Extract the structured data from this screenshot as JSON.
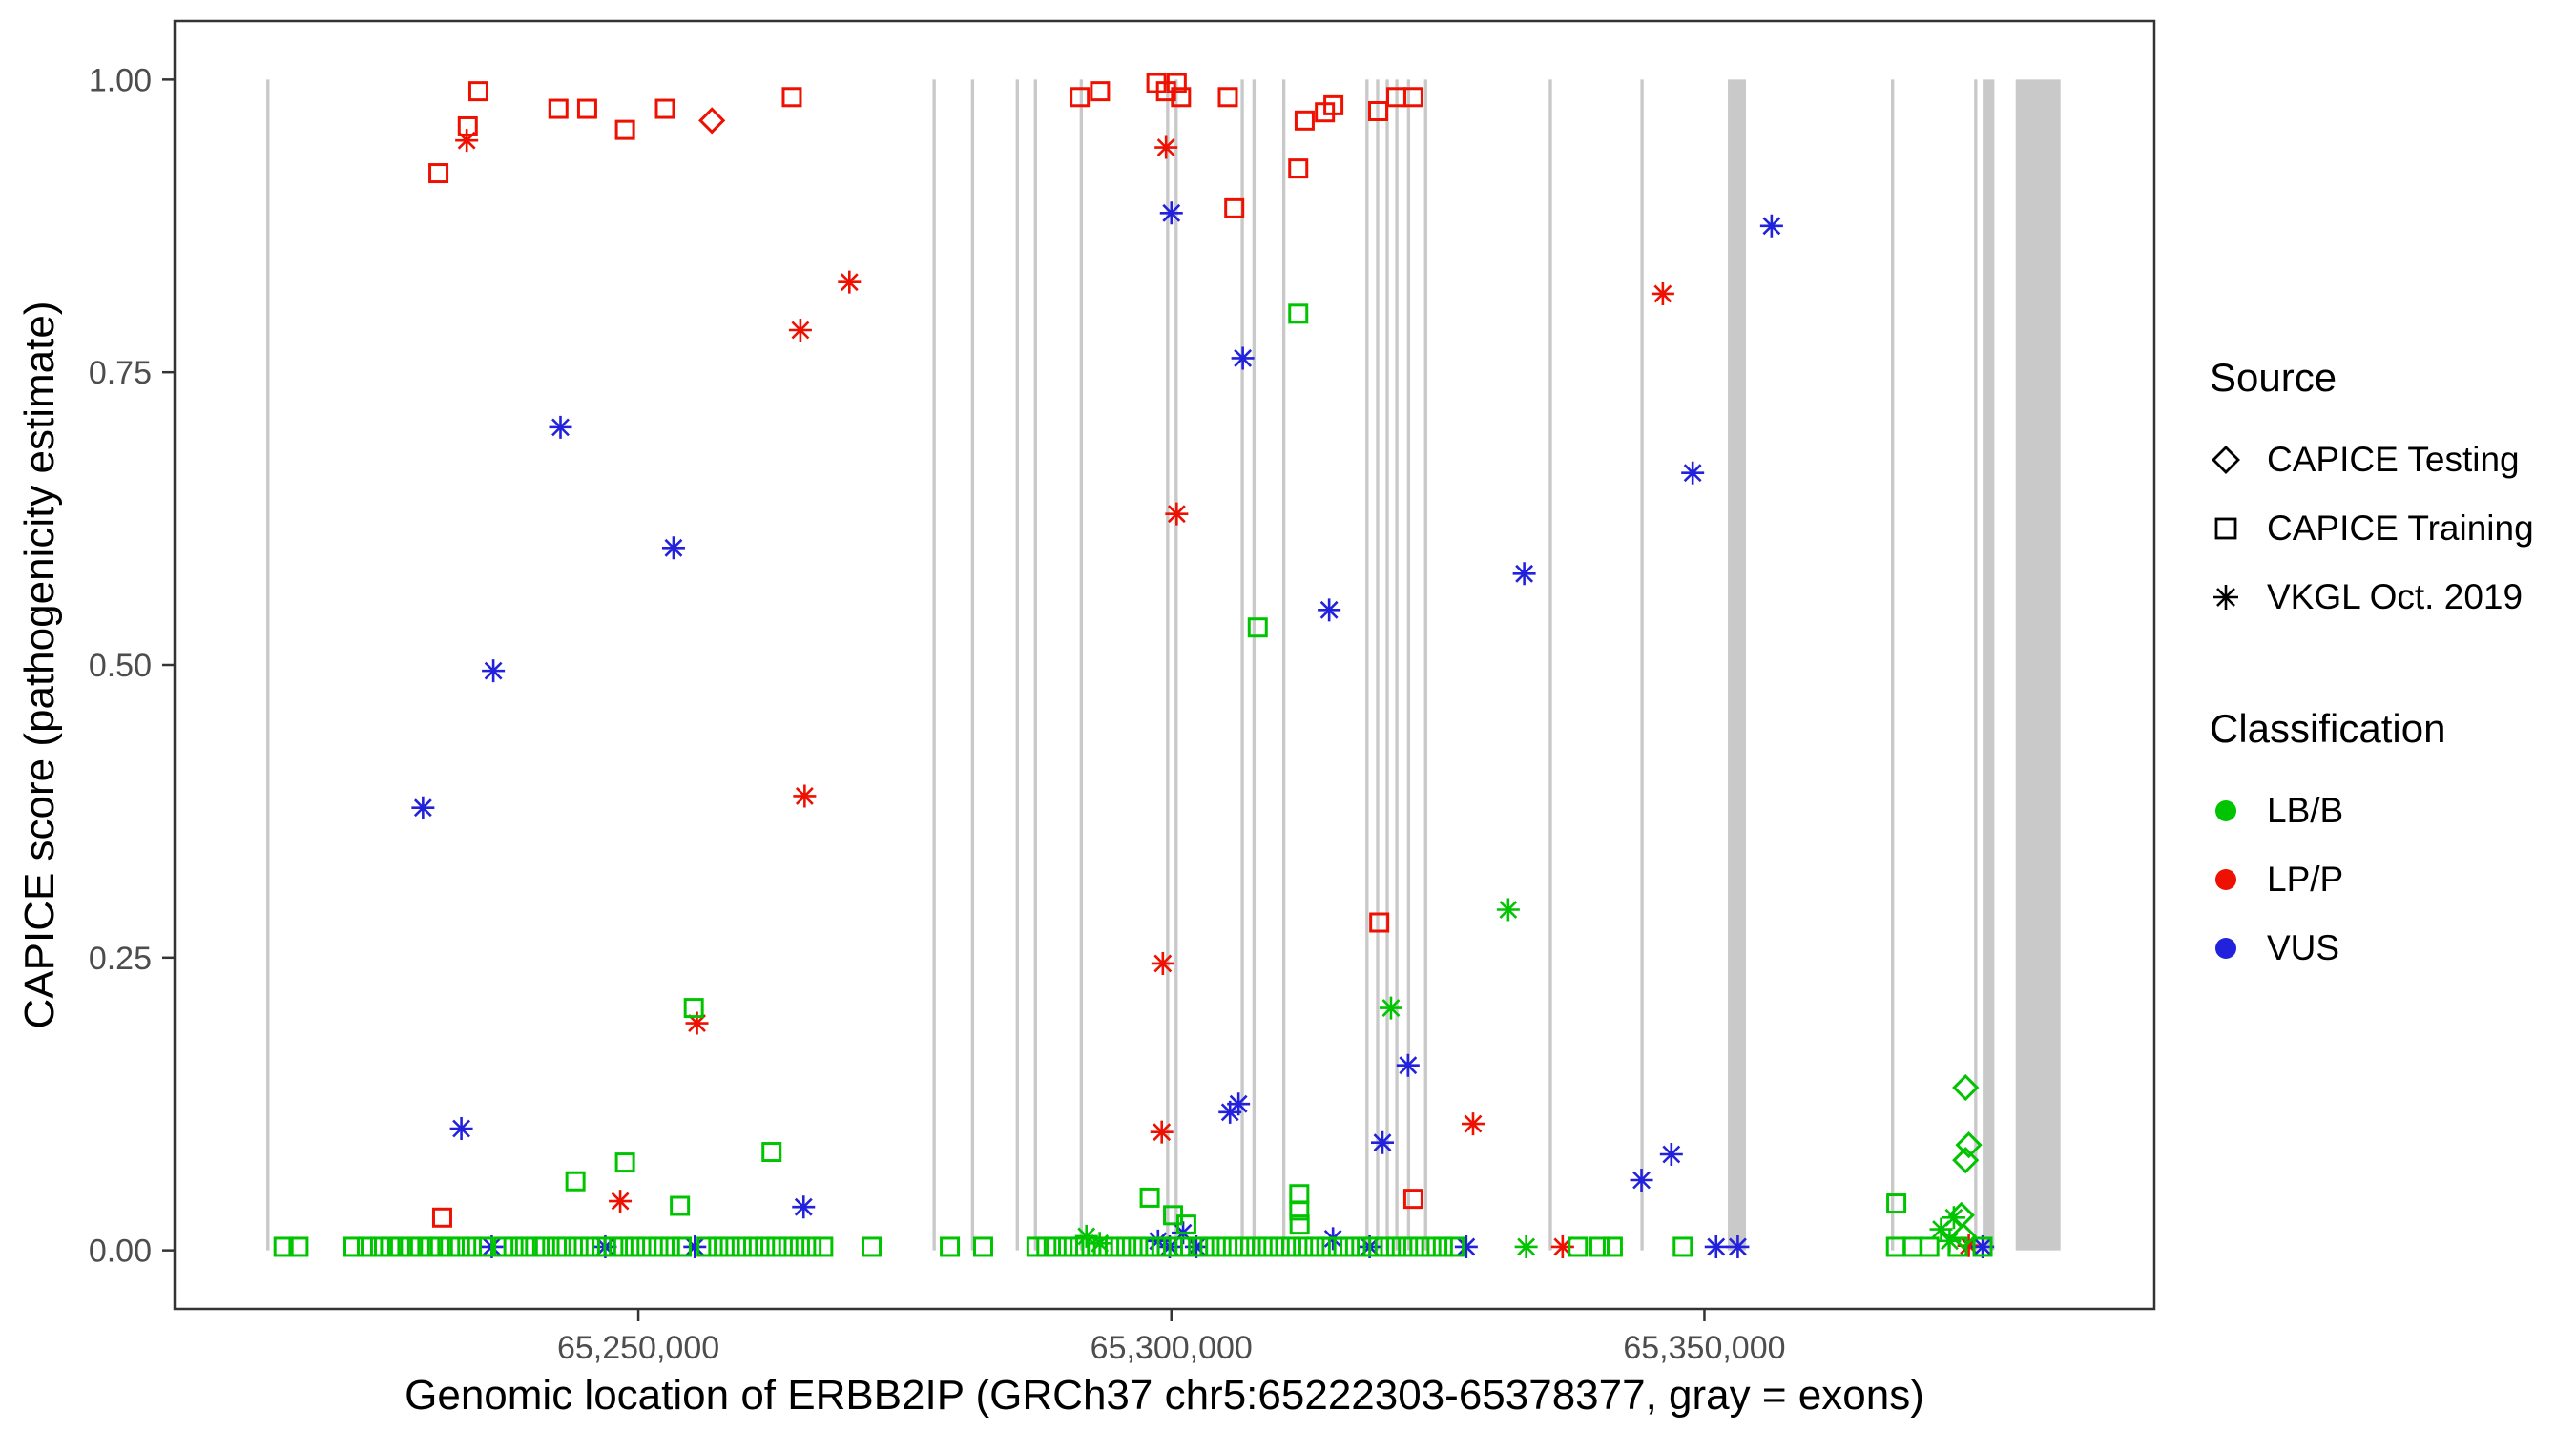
{
  "axes": {
    "y_title": "CAPICE score (pathogenicity estimate)",
    "x_title": "Genomic location of ERBB2IP (GRCh37 chr5:65222303-65378377, gray = exons)",
    "y_ticks": [
      "1.00",
      "0.75",
      "0.50",
      "0.25",
      "0.00"
    ],
    "y_tick_values": [
      1.0,
      0.75,
      0.5,
      0.25,
      0.0
    ],
    "x_ticks": [
      "65,250,000",
      "65,300,000",
      "65,350,000"
    ],
    "x_tick_values": [
      65250000,
      65300000,
      65350000
    ],
    "xlim": [
      65206500,
      65392200
    ],
    "ylim": [
      -0.05,
      1.05
    ]
  },
  "legend": {
    "source": {
      "title": "Source",
      "items": [
        {
          "shape": "diamond",
          "label": "CAPICE Testing"
        },
        {
          "shape": "square",
          "label": "CAPICE Training"
        },
        {
          "shape": "asterisk",
          "label": "VKGL Oct. 2019"
        }
      ]
    },
    "classification": {
      "title": "Classification",
      "items": [
        {
          "key": "B",
          "label": "LB/B"
        },
        {
          "key": "P",
          "label": "LP/P"
        },
        {
          "key": "U",
          "label": "VUS"
        }
      ]
    }
  },
  "colors": {
    "B": "#00c400",
    "P": "#ee1000",
    "U": "#2222dd",
    "exon": "#c9c9c9",
    "axis": "#333333",
    "tick_label": "#4d4d4d"
  },
  "chart_data": {
    "type": "scatter",
    "title": "",
    "xlabel": "Genomic location of ERBB2IP (GRCh37 chr5:65222303-65378377, gray = exons)",
    "ylabel": "CAPICE score (pathogenicity estimate)",
    "legend_position": "right",
    "grid": false,
    "shape_legend": {
      "di": "CAPICE Testing",
      "sq": "CAPICE Training",
      "as": "VKGL Oct. 2019"
    },
    "class_legend": {
      "B": "LB/B",
      "P": "LP/P",
      "U": "VUS"
    },
    "exons": [
      [
        65215100,
        65215400
      ],
      [
        65277600,
        65277900
      ],
      [
        65281200,
        65281500
      ],
      [
        65285400,
        65285700
      ],
      [
        65287100,
        65287400
      ],
      [
        65291400,
        65291700
      ],
      [
        65299500,
        65299800
      ],
      [
        65300300,
        65300600
      ],
      [
        65306500,
        65306800
      ],
      [
        65307600,
        65307900
      ],
      [
        65310400,
        65310700
      ],
      [
        65318200,
        65318500
      ],
      [
        65319200,
        65319500
      ],
      [
        65320100,
        65320400
      ],
      [
        65321000,
        65321300
      ],
      [
        65322100,
        65322400
      ],
      [
        65323700,
        65324000
      ],
      [
        65335400,
        65335700
      ],
      [
        65344000,
        65344300
      ],
      [
        65352200,
        65353900
      ],
      [
        65367500,
        65367800
      ],
      [
        65375300,
        65375600
      ],
      [
        65376100,
        65377200
      ],
      [
        65379200,
        65383400
      ]
    ],
    "points": [
      [
        65231250,
        0.92,
        "sq",
        "P"
      ],
      [
        65234000,
        0.96,
        "sq",
        "P"
      ],
      [
        65235000,
        0.99,
        "sq",
        "P"
      ],
      [
        65242500,
        0.975,
        "sq",
        "P"
      ],
      [
        65245200,
        0.975,
        "sq",
        "P"
      ],
      [
        65248750,
        0.957,
        "sq",
        "P"
      ],
      [
        65252500,
        0.975,
        "sq",
        "P"
      ],
      [
        65264400,
        0.985,
        "sq",
        "P"
      ],
      [
        65291400,
        0.985,
        "sq",
        "P"
      ],
      [
        65293300,
        0.99,
        "sq",
        "P"
      ],
      [
        65298600,
        0.997,
        "sq",
        "P"
      ],
      [
        65299500,
        0.99,
        "sq",
        "P"
      ],
      [
        65300500,
        0.997,
        "sq",
        "P"
      ],
      [
        65300900,
        0.985,
        "sq",
        "P"
      ],
      [
        65305300,
        0.985,
        "sq",
        "P"
      ],
      [
        65305900,
        0.89,
        "sq",
        "P"
      ],
      [
        65311900,
        0.924,
        "sq",
        "P"
      ],
      [
        65312500,
        0.965,
        "sq",
        "P"
      ],
      [
        65314400,
        0.972,
        "sq",
        "P"
      ],
      [
        65315200,
        0.978,
        "sq",
        "P"
      ],
      [
        65319400,
        0.973,
        "sq",
        "P"
      ],
      [
        65321100,
        0.985,
        "sq",
        "P"
      ],
      [
        65322700,
        0.985,
        "sq",
        "P"
      ],
      [
        65319500,
        0.28,
        "sq",
        "P"
      ],
      [
        65322700,
        0.044,
        "sq",
        "P"
      ],
      [
        65231600,
        0.028,
        "sq",
        "P"
      ],
      [
        65256900,
        0.965,
        "di",
        "P"
      ],
      [
        65233900,
        0.948,
        "as",
        "P"
      ],
      [
        65269800,
        0.827,
        "as",
        "P"
      ],
      [
        65265200,
        0.786,
        "as",
        "P"
      ],
      [
        65265600,
        0.388,
        "as",
        "P"
      ],
      [
        65255500,
        0.194,
        "as",
        "P"
      ],
      [
        65248300,
        0.042,
        "as",
        "P"
      ],
      [
        65299500,
        0.942,
        "as",
        "P"
      ],
      [
        65300500,
        0.629,
        "as",
        "P"
      ],
      [
        65299200,
        0.245,
        "as",
        "P"
      ],
      [
        65299100,
        0.101,
        "as",
        "P"
      ],
      [
        65328300,
        0.108,
        "as",
        "P"
      ],
      [
        65346100,
        0.817,
        "as",
        "P"
      ],
      [
        65374800,
        0.004,
        "as",
        "P"
      ],
      [
        65336700,
        0.003,
        "as",
        "P"
      ],
      [
        65229800,
        0.378,
        "as",
        "U"
      ],
      [
        65236400,
        0.495,
        "as",
        "U"
      ],
      [
        65242700,
        0.703,
        "as",
        "U"
      ],
      [
        65253300,
        0.6,
        "as",
        "U"
      ],
      [
        65233400,
        0.104,
        "as",
        "U"
      ],
      [
        65265500,
        0.037,
        "as",
        "U"
      ],
      [
        65300000,
        0.886,
        "as",
        "U"
      ],
      [
        65306700,
        0.762,
        "as",
        "U"
      ],
      [
        65314800,
        0.547,
        "as",
        "U"
      ],
      [
        65333100,
        0.578,
        "as",
        "U"
      ],
      [
        65348900,
        0.664,
        "as",
        "U"
      ],
      [
        65356300,
        0.875,
        "as",
        "U"
      ],
      [
        65319800,
        0.092,
        "as",
        "U"
      ],
      [
        65322200,
        0.158,
        "as",
        "U"
      ],
      [
        65305500,
        0.118,
        "as",
        "U"
      ],
      [
        65306300,
        0.125,
        "as",
        "U"
      ],
      [
        65344100,
        0.06,
        "as",
        "U"
      ],
      [
        65346900,
        0.082,
        "as",
        "U"
      ],
      [
        65236250,
        0.003,
        "as",
        "U"
      ],
      [
        65246900,
        0.003,
        "as",
        "U"
      ],
      [
        65255300,
        0.003,
        "as",
        "U"
      ],
      [
        65298750,
        0.008,
        "as",
        "U"
      ],
      [
        65299840,
        0.003,
        "as",
        "U"
      ],
      [
        65301100,
        0.015,
        "as",
        "U"
      ],
      [
        65302340,
        0.003,
        "as",
        "U"
      ],
      [
        65315160,
        0.01,
        "as",
        "U"
      ],
      [
        65318600,
        0.003,
        "as",
        "U"
      ],
      [
        65327660,
        0.003,
        "as",
        "U"
      ],
      [
        65351100,
        0.003,
        "as",
        "U"
      ],
      [
        65353130,
        0.003,
        "as",
        "U"
      ],
      [
        65376100,
        0.003,
        "as",
        "U"
      ],
      [
        65311900,
        0.8,
        "sq",
        "B"
      ],
      [
        65308100,
        0.532,
        "sq",
        "B"
      ],
      [
        65255200,
        0.207,
        "sq",
        "B"
      ],
      [
        65244100,
        0.059,
        "sq",
        "B"
      ],
      [
        65248750,
        0.075,
        "sq",
        "B"
      ],
      [
        65253900,
        0.038,
        "sq",
        "B"
      ],
      [
        65262500,
        0.084,
        "sq",
        "B"
      ],
      [
        65297970,
        0.045,
        "sq",
        "B"
      ],
      [
        65300160,
        0.03,
        "sq",
        "B"
      ],
      [
        65312000,
        0.048,
        "sq",
        "B"
      ],
      [
        65312000,
        0.034,
        "sq",
        "B"
      ],
      [
        65312030,
        0.022,
        "sq",
        "B"
      ],
      [
        65368000,
        0.04,
        "sq",
        "B"
      ],
      [
        65301400,
        0.022,
        "sq",
        "B"
      ],
      [
        65320600,
        0.207,
        "as",
        "B"
      ],
      [
        65331600,
        0.291,
        "as",
        "B"
      ],
      [
        65293280,
        0.006,
        "as",
        "B"
      ],
      [
        65292030,
        0.012,
        "as",
        "B"
      ],
      [
        65333280,
        0.003,
        "as",
        "B"
      ],
      [
        65372200,
        0.018,
        "as",
        "B"
      ],
      [
        65373000,
        0.008,
        "as",
        "B"
      ],
      [
        65373400,
        0.028,
        "as",
        "B"
      ],
      [
        65374500,
        0.139,
        "di",
        "B"
      ],
      [
        65374800,
        0.09,
        "di",
        "B"
      ],
      [
        65374500,
        0.077,
        "di",
        "B"
      ],
      [
        65374100,
        0.03,
        "di",
        "B"
      ],
      [
        65374300,
        0.012,
        "di",
        "B"
      ]
    ],
    "baseline_points": {
      "score": 0.003,
      "shape": "sq",
      "class": "B",
      "positions": [
        65216719,
        65218125,
        65223281,
        65224531,
        65225781,
        65226719,
        65227656,
        65228594,
        65229531,
        65230469,
        65231406,
        65232344,
        65233281,
        65234375,
        65235469,
        65237344,
        65238281,
        65239375,
        65240313,
        65241250,
        65242344,
        65243281,
        65244375,
        65245469,
        65246563,
        65247656,
        65248594,
        65249688,
        65250781,
        65251875,
        65252969,
        65254063,
        65256406,
        65257500,
        65258594,
        65259688,
        65260781,
        65261875,
        65262969,
        65264063,
        65265156,
        65266250,
        65267344,
        65271875,
        65279219,
        65282344,
        65287344,
        65288281,
        65289219,
        65290313,
        65291406,
        65292500,
        65293594,
        65294688,
        65295781,
        65296875,
        65297969,
        65299063,
        65300156,
        65301250,
        65302500,
        65303594,
        65304688,
        65305781,
        65306875,
        65307969,
        65309063,
        65310156,
        65311250,
        65312344,
        65313438,
        65314531,
        65315625,
        65316719,
        65317813,
        65318906,
        65320000,
        65321094,
        65322188,
        65323281,
        65324375,
        65325469,
        65326563,
        65338125,
        65340156,
        65341406,
        65347969,
        65367969,
        65369531,
        65371094,
        65373750,
        65376094
      ]
    }
  }
}
